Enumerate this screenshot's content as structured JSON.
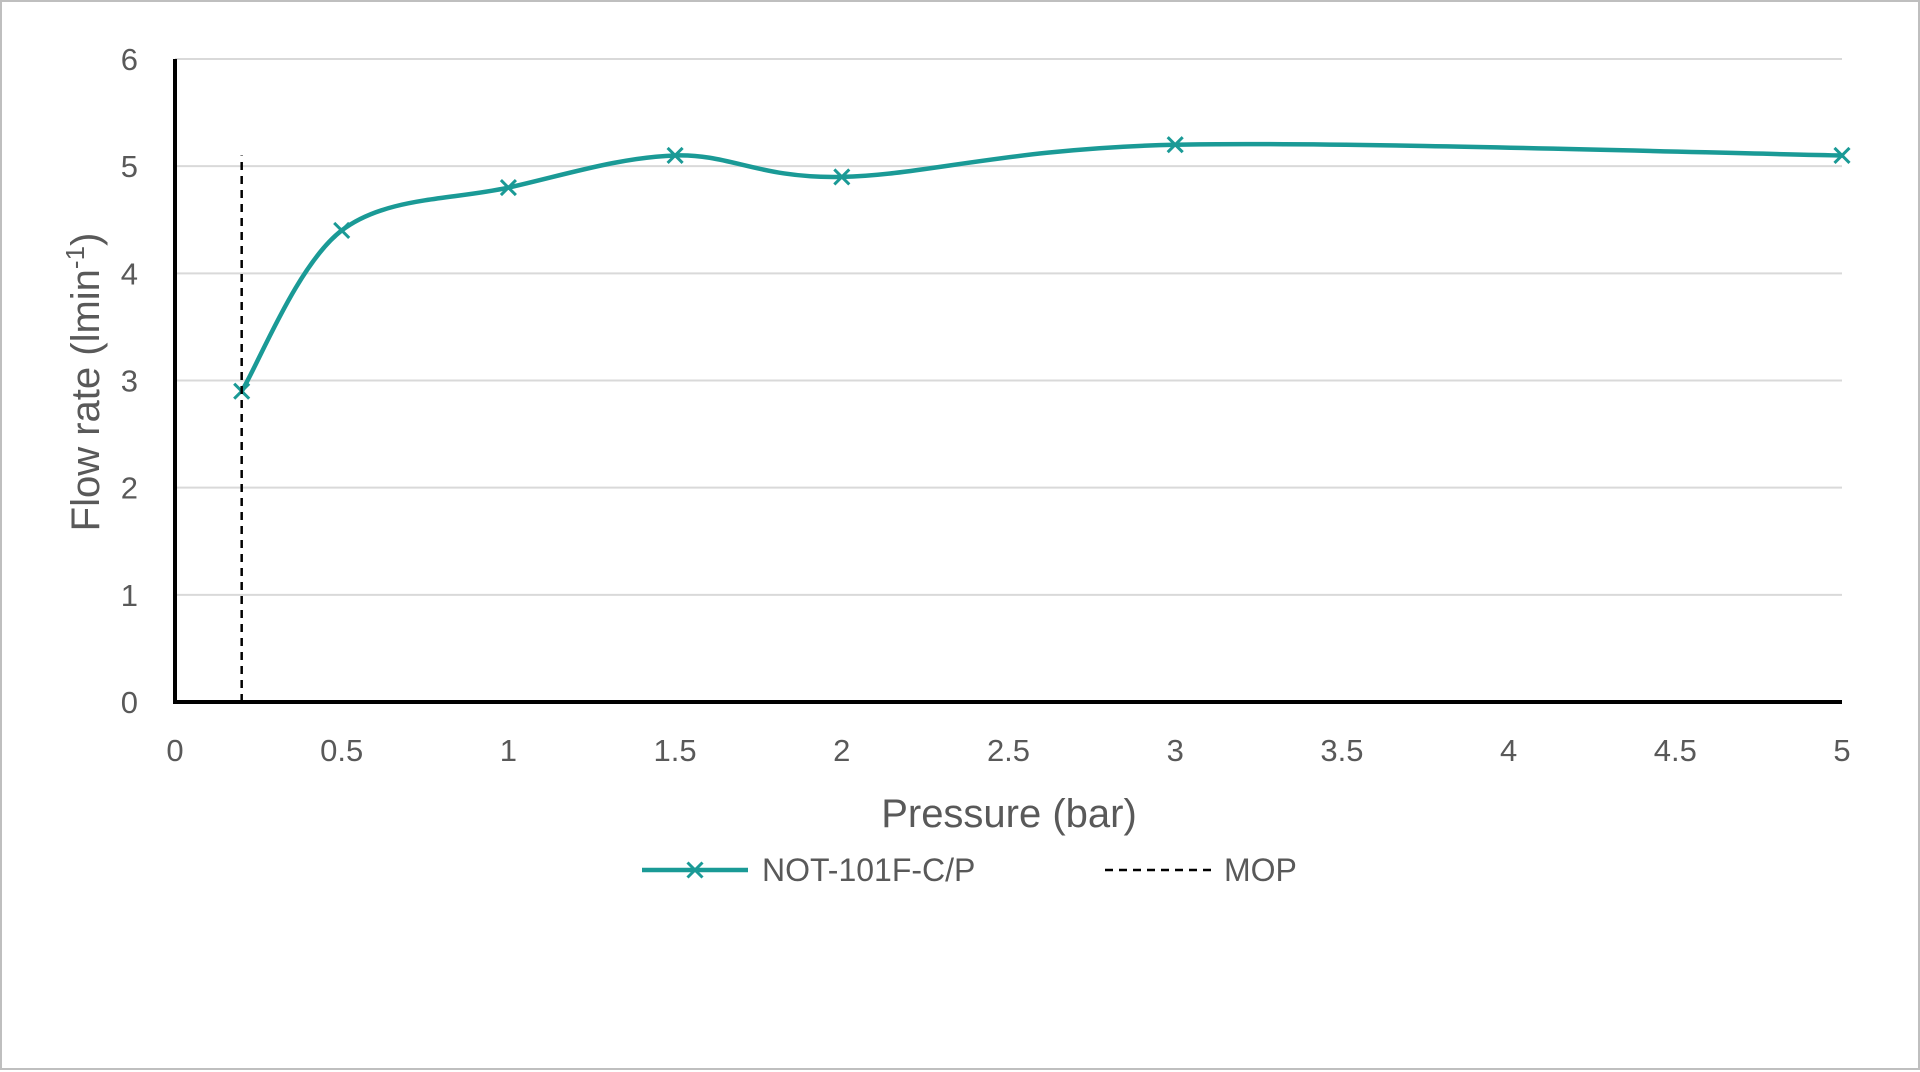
{
  "chart_data": {
    "type": "line",
    "xlabel": "Pressure (bar)",
    "ylabel": {
      "main": "Flow rate (lmin",
      "sup": "-1",
      "tail": ")"
    },
    "x_ticks": [
      "0",
      "0.5",
      "1",
      "1.5",
      "2",
      "2.5",
      "3",
      "3.5",
      "4",
      "4.5",
      "5"
    ],
    "y_ticks": [
      "0",
      "1",
      "2",
      "3",
      "4",
      "5",
      "6"
    ],
    "xlim": [
      0,
      5
    ],
    "ylim": [
      0,
      6
    ],
    "grid": true,
    "legend_position": "bottom",
    "series": [
      {
        "name": "NOT-101F-C/P",
        "color": "#1a9a96",
        "marker": "x",
        "smooth": true,
        "x": [
          0.2,
          0.5,
          1,
          1.5,
          2,
          3,
          5
        ],
        "y": [
          2.9,
          4.4,
          4.8,
          5.1,
          4.9,
          5.2,
          5.1
        ]
      },
      {
        "name": "MOP",
        "color": "#000000",
        "style": "dashed",
        "x": [
          0.2,
          0.2
        ],
        "y": [
          0,
          5.1
        ]
      }
    ]
  }
}
